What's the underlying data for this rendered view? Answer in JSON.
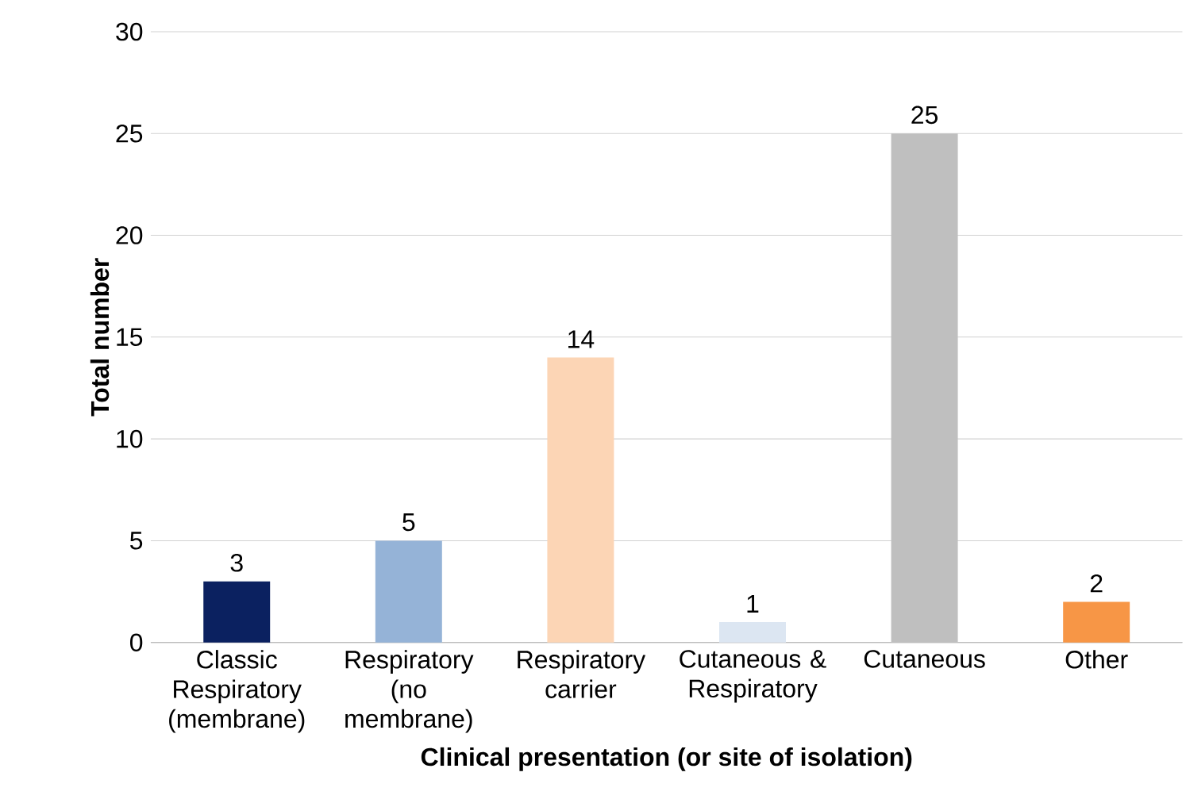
{
  "chart_data": {
    "type": "bar",
    "xlabel": "Clinical presentation  (or site of isolation)",
    "ylabel": "Total number",
    "categories": [
      "Classic Respiratory (membrane)",
      "Respiratory (no membrane)",
      "Respiratory carrier",
      "Cutaneous & Respiratory",
      "Cutaneous",
      "Other"
    ],
    "values": [
      3,
      5,
      14,
      1,
      25,
      2
    ],
    "colors": [
      "#0b2160",
      "#95b3d7",
      "#fcd5b5",
      "#dce6f2",
      "#bfbfbf",
      "#f79646"
    ],
    "ylim": [
      0,
      30
    ],
    "yticks": [
      0,
      5,
      10,
      15,
      20,
      25,
      30
    ],
    "grid": "y",
    "data_labels": true
  }
}
